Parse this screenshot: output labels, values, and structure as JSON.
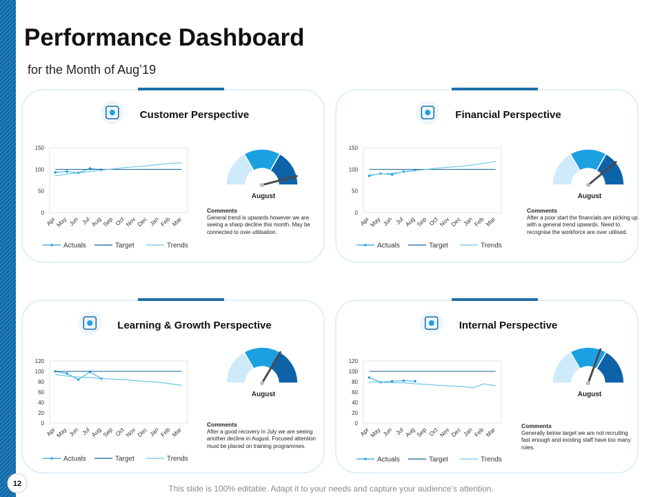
{
  "title": "Performance Dashboard",
  "subtitle": "for the Month of Aug’19",
  "page_number": "12",
  "footer": "This slide is 100% editable. Adapt it to your needs and capture your audience’s attention.",
  "panels": [
    {
      "heading": "Customer Perspective",
      "comments_title": "Comments",
      "comments": "General trend is upwards however we are seeing a sharp decline this month. May be connected to over-utilisation.",
      "chart_data": {
        "type": "line",
        "categories": [
          "Apr",
          "May",
          "Jun",
          "Jul",
          "Aug",
          "Sep",
          "Oct",
          "Nov",
          "Dec",
          "Jan",
          "Feb",
          "Mar"
        ],
        "ylim": [
          0,
          150
        ],
        "yticks": [
          0,
          50,
          100,
          150
        ],
        "series": [
          {
            "name": "Actuals",
            "color": "#2a9fd6",
            "values": [
              93,
              95,
              92,
              102,
              99,
              null,
              null,
              null,
              null,
              null,
              null,
              null
            ]
          },
          {
            "name": "Target",
            "color": "#0e5f95",
            "values": [
              100,
              100,
              100,
              100,
              100,
              100,
              100,
              100,
              100,
              100,
              100,
              100
            ]
          },
          {
            "name": "Trends",
            "color": "#6cc6e8",
            "values": [
              85,
              89,
              92,
              95,
              98,
              101,
              104,
              106,
              108,
              111,
              114,
              115
            ]
          }
        ]
      },
      "gauge": {
        "type": "gauge",
        "label": "August",
        "value": 92,
        "ylim": [
          0,
          100
        ]
      }
    },
    {
      "heading": "Financial Perspective",
      "comments_title": "Comments",
      "comments": "After a poor start the financials are picking up with a general trend upwards. Need to recognise the workforce are over utilised.",
      "chart_data": {
        "type": "line",
        "categories": [
          "Apr",
          "May",
          "Jun",
          "Jul",
          "Aug",
          "Sep",
          "Oct",
          "Nov",
          "Dec",
          "Jan",
          "Feb",
          "Mar"
        ],
        "ylim": [
          0,
          150
        ],
        "yticks": [
          0,
          50,
          100,
          150
        ],
        "series": [
          {
            "name": "Actuals",
            "color": "#2a9fd6",
            "values": [
              85,
              90,
              88,
              95,
              98,
              null,
              null,
              null,
              null,
              null,
              null,
              null
            ]
          },
          {
            "name": "Target",
            "color": "#0e5f95",
            "values": [
              100,
              100,
              100,
              100,
              100,
              100,
              100,
              100,
              100,
              100,
              100,
              100
            ]
          },
          {
            "name": "Trends",
            "color": "#6cc6e8",
            "values": [
              87,
              89,
              91,
              94,
              97,
              100,
              103,
              105,
              107,
              110,
              114,
              118
            ]
          }
        ]
      },
      "gauge": {
        "type": "gauge",
        "label": "August",
        "value": 78,
        "ylim": [
          0,
          100
        ]
      }
    },
    {
      "heading": "Learning & Growth Perspective",
      "comments_title": "Comments",
      "comments": "After a good recovery in July we are seeing another decline in August. Focused attention must be placed on training programmes.",
      "chart_data": {
        "type": "line",
        "categories": [
          "Apr",
          "May",
          "Jun",
          "Jul",
          "Aug",
          "Sep",
          "Oct",
          "Nov",
          "Dec",
          "Jan",
          "Feb",
          "Mar"
        ],
        "ylim": [
          0,
          120
        ],
        "yticks": [
          0,
          20,
          40,
          60,
          80,
          100,
          120
        ],
        "series": [
          {
            "name": "Actuals",
            "color": "#2a9fd6",
            "values": [
              100,
              96,
              84,
              99,
              86,
              null,
              null,
              null,
              null,
              null,
              null,
              null
            ]
          },
          {
            "name": "Target",
            "color": "#0e5f95",
            "values": [
              100,
              100,
              100,
              100,
              100,
              100,
              100,
              100,
              100,
              100,
              100,
              100
            ]
          },
          {
            "name": "Trends",
            "color": "#6cc6e8",
            "values": [
              94,
              91,
              89,
              88,
              86,
              85,
              84,
              82,
              80,
              79,
              76,
              73
            ]
          }
        ]
      },
      "gauge": {
        "type": "gauge",
        "label": "August",
        "value": 67,
        "ylim": [
          0,
          100
        ]
      }
    },
    {
      "heading": "Internal Perspective",
      "comments_title": "Comments",
      "comments": "Generally below target we are not recruiting fast enough and existing staff have too many roles.",
      "chart_data": {
        "type": "line",
        "categories": [
          "Apr",
          "May",
          "Jun",
          "Jul",
          "Aug",
          "Sep",
          "Oct",
          "Nov",
          "Dec",
          "Jan",
          "Feb",
          "Mar"
        ],
        "ylim": [
          0,
          120
        ],
        "yticks": [
          0,
          20,
          40,
          60,
          80,
          100,
          120
        ],
        "series": [
          {
            "name": "Actuals",
            "color": "#2a9fd6",
            "values": [
              88,
              79,
              81,
              82,
              81,
              null,
              null,
              null,
              null,
              null,
              null,
              null
            ]
          },
          {
            "name": "Target",
            "color": "#0e5f95",
            "values": [
              100,
              100,
              100,
              100,
              100,
              100,
              100,
              100,
              100,
              100,
              100,
              100
            ]
          },
          {
            "name": "Trends",
            "color": "#6cc6e8",
            "values": [
              80,
              79,
              78,
              78,
              76,
              75,
              73,
              72,
              71,
              68,
              76,
              72
            ]
          }
        ]
      },
      "gauge": {
        "type": "gauge",
        "label": "August",
        "value": 61,
        "ylim": [
          0,
          100
        ]
      }
    }
  ]
}
